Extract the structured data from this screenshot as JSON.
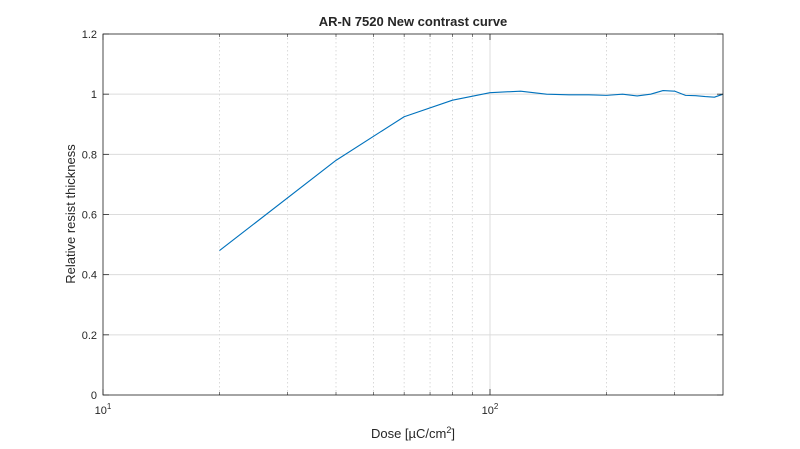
{
  "chart_data": {
    "type": "line",
    "title": "AR-N 7520 New contrast curve",
    "xlabel": "Dose [µC/cm",
    "xlabel_sup": "2",
    "xlabel_suffix": "]",
    "ylabel": "Relative resist thickness",
    "xscale": "log",
    "xlim": [
      10,
      400
    ],
    "ylim": [
      0,
      1.2
    ],
    "grid": true,
    "legend": "none",
    "x_ticks": [
      {
        "value": 10,
        "base": "10",
        "exp": "1"
      },
      {
        "value": 100,
        "base": "10",
        "exp": "2"
      }
    ],
    "y_ticks": [
      {
        "value": 0,
        "label": "0"
      },
      {
        "value": 0.2,
        "label": "0.2"
      },
      {
        "value": 0.4,
        "label": "0.4"
      },
      {
        "value": 0.6,
        "label": "0.6"
      },
      {
        "value": 0.8,
        "label": "0.8"
      },
      {
        "value": 1,
        "label": "1"
      },
      {
        "value": 1.2,
        "label": "1.2"
      }
    ],
    "series": [
      {
        "color": "#0072BD",
        "x": [
          20,
          40,
          60,
          80,
          100,
          120,
          140,
          160,
          180,
          200,
          220,
          240,
          260,
          280,
          300,
          320,
          340,
          360,
          380,
          400
        ],
        "y": [
          0.48,
          0.78,
          0.925,
          0.98,
          1.005,
          1.01,
          1.0,
          0.998,
          0.998,
          0.996,
          1.0,
          0.994,
          1.0,
          1.012,
          1.01,
          0.996,
          0.995,
          0.992,
          0.99,
          1.0
        ]
      }
    ]
  }
}
